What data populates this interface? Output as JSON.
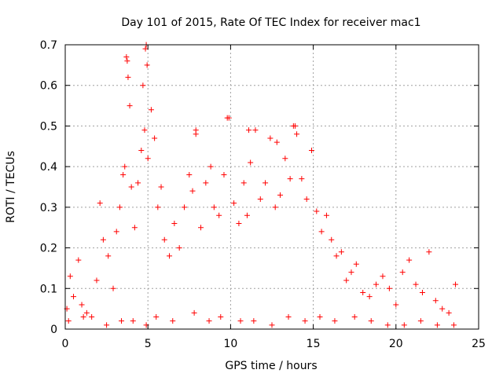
{
  "chart_data": {
    "type": "scatter",
    "title": "Day 101 of 2015, Rate Of TEC Index for receiver mac1",
    "xlabel": "GPS time / hours",
    "ylabel": "ROTI / TECUs",
    "xlim": [
      0,
      25
    ],
    "ylim": [
      0,
      0.7
    ],
    "xticks": [
      "0",
      "5",
      "10",
      "15",
      "20",
      "25"
    ],
    "yticks": [
      "0",
      "0.1",
      "0.2",
      "0.3",
      "0.4",
      "0.5",
      "0.6",
      "0.7"
    ],
    "grid": true,
    "marker": "plus",
    "color": "#ff0000",
    "series": [
      {
        "x": [
          0.1,
          0.3,
          0.5,
          0.8,
          1.0,
          1.3,
          1.6,
          1.9,
          2.1,
          2.3,
          2.6,
          2.9,
          3.1,
          3.3,
          3.5,
          3.6,
          3.7,
          3.8,
          3.9,
          4.0,
          4.2,
          4.4,
          4.6,
          4.7,
          4.8,
          4.9,
          5.0,
          5.2,
          5.4,
          5.6,
          5.8,
          6.0,
          6.3,
          6.6,
          6.9,
          7.2,
          7.5,
          7.7,
          7.9,
          8.2,
          8.5,
          8.8,
          9.0,
          9.3,
          9.6,
          9.9,
          10.2,
          10.5,
          10.8,
          11.0,
          11.2,
          11.5,
          11.8,
          12.1,
          12.4,
          12.7,
          13.0,
          13.3,
          13.6,
          13.8,
          14.0,
          14.3,
          14.6,
          14.9,
          15.2,
          15.5,
          15.8,
          16.1,
          16.4,
          16.7,
          17.0,
          17.3,
          17.6,
          18.0,
          18.4,
          18.8,
          19.2,
          19.6,
          20.0,
          20.4,
          20.8,
          21.2,
          21.6,
          22.0,
          22.4,
          22.8,
          23.2,
          23.6,
          0.2,
          1.1,
          2.5,
          3.4,
          4.1,
          4.9,
          5.5,
          6.5,
          7.8,
          8.7,
          9.4,
          10.6,
          11.4,
          12.5,
          13.5,
          14.5,
          15.4,
          16.3,
          17.5,
          18.5,
          19.5,
          20.5,
          21.5,
          22.5,
          23.5,
          3.75,
          4.85,
          4.95,
          9.8,
          11.1,
          13.9,
          12.8,
          7.9
        ],
        "y": [
          0.05,
          0.13,
          0.08,
          0.17,
          0.06,
          0.04,
          0.03,
          0.12,
          0.31,
          0.22,
          0.18,
          0.1,
          0.24,
          0.3,
          0.38,
          0.4,
          0.67,
          0.62,
          0.55,
          0.35,
          0.25,
          0.36,
          0.44,
          0.6,
          0.49,
          0.7,
          0.42,
          0.54,
          0.47,
          0.3,
          0.35,
          0.22,
          0.18,
          0.26,
          0.2,
          0.3,
          0.38,
          0.34,
          0.48,
          0.25,
          0.36,
          0.4,
          0.3,
          0.28,
          0.38,
          0.52,
          0.31,
          0.26,
          0.36,
          0.28,
          0.41,
          0.49,
          0.32,
          0.36,
          0.47,
          0.3,
          0.33,
          0.42,
          0.37,
          0.5,
          0.48,
          0.37,
          0.32,
          0.44,
          0.29,
          0.24,
          0.28,
          0.22,
          0.18,
          0.19,
          0.12,
          0.14,
          0.16,
          0.09,
          0.08,
          0.11,
          0.13,
          0.1,
          0.06,
          0.14,
          0.17,
          0.11,
          0.09,
          0.19,
          0.07,
          0.05,
          0.04,
          0.11,
          0.02,
          0.03,
          0.01,
          0.02,
          0.02,
          0.01,
          0.03,
          0.02,
          0.04,
          0.02,
          0.03,
          0.02,
          0.02,
          0.01,
          0.03,
          0.02,
          0.03,
          0.02,
          0.03,
          0.02,
          0.01,
          0.01,
          0.02,
          0.01,
          0.01,
          0.66,
          0.69,
          0.65,
          0.52,
          0.49,
          0.5,
          0.46,
          0.49
        ]
      }
    ]
  }
}
